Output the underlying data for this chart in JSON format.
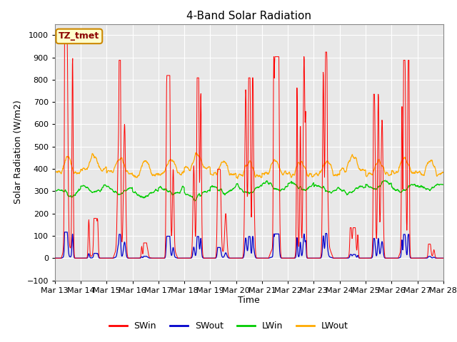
{
  "title": "4-Band Solar Radiation",
  "xlabel": "Time",
  "ylabel": "Solar Radiation (W/m2)",
  "ylim": [
    -100,
    1050
  ],
  "yticks": [
    -100,
    0,
    100,
    200,
    300,
    400,
    500,
    600,
    700,
    800,
    900,
    1000
  ],
  "label_text": "TZ_tmet",
  "legend_labels": [
    "SWin",
    "SWout",
    "LWin",
    "LWout"
  ],
  "legend_colors": [
    "#ff0000",
    "#0000cc",
    "#00cc00",
    "#ffaa00"
  ],
  "start_day": 13,
  "num_days": 15,
  "fig_bg": "#ffffff",
  "plot_bg": "#e8e8e8",
  "grid_color": "#ffffff",
  "title_fontsize": 11,
  "axis_fontsize": 9,
  "tick_fontsize": 8,
  "lwin_base": 305,
  "lwout_base": 375,
  "swout_scale": 0.12,
  "swin_peaks": [
    925,
    170,
    845,
    65,
    780,
    770,
    380,
    770,
    860,
    870,
    880,
    130,
    700,
    845,
    60,
    760,
    850,
    850,
    600,
    885,
    970,
    165
  ],
  "hours_per_day": 24,
  "samples_per_hour": 4
}
